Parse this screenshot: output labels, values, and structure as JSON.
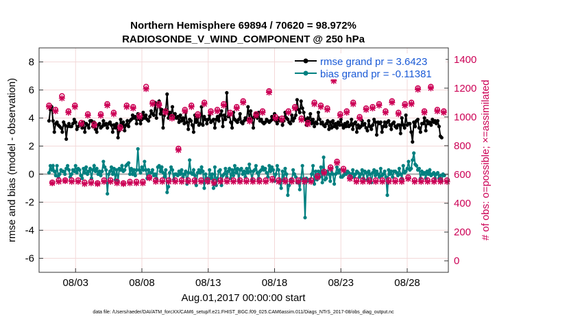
{
  "chart_data": {
    "type": "line",
    "title_line1": "Northern Hemisphere 69894 / 70620 = 98.972%",
    "title_line2": "RADIOSONDE_V_WIND_COMPONENT @ 250 hPa",
    "xlabel": "Aug.01,2017 00:00:00 start",
    "ylabel_left": "rmse and bias (model - observation)",
    "ylabel_right": "# of obs: o=possible; ×=assimilated",
    "footer": "data file: /Users/raeder/DAI/ATM_forcXX/CAM6_setup/f.e21.FHIST_BGC.f09_025.CAM6assim.011/Diags_NTrS_2017-08/obs_diag_output.nc",
    "x_range_days": [
      0.25,
      31.1
    ],
    "x_ticks": [
      {
        "day": 3,
        "label": "08/03"
      },
      {
        "day": 8,
        "label": "08/08"
      },
      {
        "day": 13,
        "label": "08/13"
      },
      {
        "day": 18,
        "label": "08/18"
      },
      {
        "day": 23,
        "label": "08/23"
      },
      {
        "day": 28,
        "label": "08/28"
      }
    ],
    "left_axis": {
      "range": [
        -7,
        9
      ],
      "ticks": [
        -6,
        -4,
        -2,
        0,
        2,
        4,
        6,
        8
      ]
    },
    "right_axis": {
      "range": [
        -80,
        1480
      ],
      "ticks": [
        0,
        200,
        400,
        600,
        800,
        1000,
        1200,
        1400
      ],
      "color": "#cc0055"
    },
    "legend": [
      {
        "label": "rmse grand pr = 3.6423",
        "color": "#000000",
        "marker": "circle"
      },
      {
        "label": "bias grand pr = -0.11381",
        "color": "#008080",
        "marker": "circle"
      }
    ],
    "series": {
      "rmse": {
        "name": "rmse",
        "color": "#000000",
        "values": [
          3.8,
          4.6,
          4.8,
          3.8,
          3.0,
          3.6,
          3.7,
          3.5,
          3.4,
          3.3,
          3.0,
          3.7,
          3.5,
          2.5,
          3.4,
          3.6,
          3.4,
          3.4,
          3.6,
          3.9,
          3.7,
          3.2,
          3.4,
          3.6,
          3.5,
          3.3,
          3.7,
          3.0,
          3.6,
          3.5,
          3.3,
          3.8,
          3.8,
          3.4,
          3.7,
          3.2,
          3.0,
          3.5,
          3.6,
          3.3,
          3.4,
          3.8,
          3.5,
          3.6,
          3.3,
          3.6,
          3.7,
          3.5,
          3.0,
          3.5,
          3.3,
          3.6,
          2.6,
          3.1,
          3.9,
          3.4,
          3.7,
          3.1,
          3.5,
          3.8,
          3.4,
          3.8,
          3.9,
          4.2,
          4.0,
          4.1,
          3.6,
          4.3,
          3.9,
          3.6,
          3.9,
          4.4,
          4.0,
          4.2,
          3.9,
          3.8,
          4.1,
          4.5,
          4.3,
          4.2,
          5.1,
          4.0,
          5.0,
          5.2,
          4.3,
          4.6,
          3.3,
          4.2,
          4.6,
          5.7,
          4.0,
          4.4,
          4.2,
          4.8,
          4.0,
          4.3,
          4.0,
          4.1,
          3.7,
          4.2,
          3.8,
          4.0,
          3.6,
          4.4,
          3.7,
          3.2,
          3.9,
          3.8,
          3.5,
          3.0,
          4.2,
          3.7,
          4.0,
          3.5,
          3.6,
          4.8,
          3.5,
          4.1,
          3.9,
          3.6,
          3.9,
          4.2,
          3.7,
          3.8,
          3.9,
          3.3,
          3.9,
          4.1,
          3.8,
          4.2,
          4.5,
          3.4,
          4.2,
          3.9,
          5.8,
          4.1,
          4.2,
          3.7,
          3.3,
          4.4,
          3.9,
          3.8,
          3.7,
          3.9,
          4.3,
          3.7,
          3.6,
          3.8,
          4.0,
          3.9,
          4.8,
          3.9,
          4.5,
          4.0,
          3.3,
          4.1,
          4.3,
          4.0,
          4.4,
          3.8,
          3.9,
          3.7,
          3.6,
          3.7,
          3.9,
          3.8,
          3.7,
          3.8,
          4.1,
          3.9,
          4.3,
          3.8,
          3.6,
          4.0,
          3.8,
          3.9,
          3.5,
          3.8,
          4.4,
          4.0,
          3.9,
          3.7,
          3.6,
          4.2,
          3.8,
          4.0,
          4.2,
          5.3,
          4.6,
          4.4,
          5.2,
          4.7,
          4.4,
          3.9,
          3.5,
          4.0,
          3.8,
          4.3,
          3.6,
          3.9,
          3.4,
          3.7,
          3.6,
          4.4,
          3.9,
          3.6,
          3.7,
          3.5,
          3.4,
          3.6,
          3.8,
          3.2,
          3.7,
          3.3,
          3.8,
          3.4,
          3.6,
          3.3,
          3.7,
          3.5,
          3.9,
          3.5,
          3.3,
          3.6,
          3.4,
          3.7,
          3.4,
          3.5,
          3.9,
          3.2,
          3.6,
          3.7,
          3.0,
          3.5,
          3.3,
          3.4,
          3.8,
          3.5,
          3.6,
          3.3,
          3.1,
          3.8,
          3.4,
          3.2,
          3.5,
          3.9,
          3.7,
          2.8,
          3.7,
          3.6,
          3.7,
          3.0,
          3.4,
          3.7,
          3.4,
          3.7,
          3.8,
          3.5,
          3.2,
          3.6,
          3.7,
          3.4,
          3.3,
          3.5,
          3.5,
          2.9,
          4.0,
          3.5,
          3.3,
          4.2,
          3.5,
          3.6,
          3.6,
          3.0,
          2.3,
          3.7,
          3.4,
          3.8,
          3.9,
          3.3,
          3.0,
          3.6,
          3.6,
          4.0,
          3.1,
          3.8,
          3.6,
          3.7,
          3.5,
          3.9,
          3.7,
          3.8,
          3.6,
          3.8,
          3.4,
          2.7,
          2.6
        ]
      },
      "bias": {
        "name": "bias",
        "color": "#008080",
        "values": [
          0.1,
          0.6,
          0.3,
          0.6,
          0.2,
          -0.1,
          0.6,
          -0.2,
          0.0,
          0.3,
          0.2,
          0.2,
          0.0,
          0.4,
          0.6,
          0.3,
          -0.2,
          0.0,
          0.3,
          0.2,
          0.6,
          0.1,
          0.4,
          0.3,
          -0.1,
          -0.3,
          0.4,
          0.1,
          0.5,
          0.0,
          0.2,
          0.4,
          -0.3,
          0.3,
          0.6,
          0.2,
          0.4,
          0.0,
          0.2,
          -0.1,
          0.2,
          0.9,
          0.5,
          0.3,
          -1.4,
          0.0,
          0.2,
          0.5,
          0.0,
          0.4,
          -0.4,
          0.3,
          -0.5,
          0.4,
          0.3,
          0.6,
          0.2,
          0.3,
          0.6,
          0.7,
          0.8,
          0.0,
          0.4,
          0.0,
          0.3,
          -0.1,
          0.3,
          1.8,
          0.3,
          0.1,
          0.5,
          0.3,
          0.9,
          0.3,
          -0.3,
          0.3,
          0.1,
          0.1,
          0.3,
          -0.1,
          0.0,
          -0.3,
          0.5,
          0.6,
          0.2,
          0.5,
          0.1,
          -0.2,
          0.3,
          -1.3,
          -0.9,
          0.1,
          0.5,
          0.3,
          -0.4,
          0.0,
          0.0,
          -0.1,
          0.2,
          0.0,
          0.3,
          -0.2,
          0.0,
          0.2,
          -0.7,
          0.1,
          1.0,
          0.1,
          0.0,
          0.3,
          -0.1,
          -0.8,
          0.1,
          0.3,
          0.1,
          0.5,
          0.2,
          -1.0,
          0.0,
          -0.3,
          -0.6,
          0.3,
          -0.3,
          0.0,
          -1.0,
          0.5,
          -0.8,
          -0.3,
          0.2,
          0.3,
          -0.8,
          -0.1,
          0.0,
          0.4,
          -0.2,
          0.2,
          0.4,
          -0.3,
          0.3,
          -0.1,
          0.6,
          0.1,
          0.4,
          -0.5,
          0.3,
          0.4,
          0.0,
          0.2,
          -0.2,
          0.4,
          0.1,
          0.7,
          0.2,
          -0.4,
          0.2,
          0.3,
          0.6,
          0.1,
          -0.3,
          0.2,
          0.3,
          0.5,
          0.3,
          0.4,
          0.1,
          -0.2,
          0.6,
          0.2,
          0.5,
          0.3,
          -0.5,
          0.0,
          0.6,
          0.3,
          -0.6,
          -1.0,
          0.2,
          -0.4,
          0.4,
          0.0,
          -1.5,
          -0.8,
          -0.4,
          -0.5,
          0.3,
          0.0,
          -0.2,
          -0.6,
          -0.5,
          -1.1,
          -0.3,
          0.6,
          -0.4,
          -3.1,
          -0.3,
          -0.5,
          -0.4,
          -0.5,
          0.0,
          0.6,
          -0.7,
          0.2,
          -0.4,
          0.2,
          -0.2,
          0.5,
          -0.6,
          1.2,
          -0.4,
          -0.3,
          0.2,
          0.0,
          -0.5,
          0.4,
          0.0,
          -0.7,
          0.0,
          0.5,
          0.1,
          0.3,
          -0.2,
          -0.2,
          -0.1,
          0.1,
          0.0,
          0.2,
          0.1,
          -0.1,
          0.0,
          0.3,
          -0.2,
          0.0,
          0.2,
          0.1,
          -0.2,
          0.0,
          0.3,
          -0.3,
          0.2,
          0.1,
          -0.4,
          0.2,
          0.0,
          -0.6,
          0.1,
          0.3,
          -0.1,
          0.2,
          0.0,
          -0.2,
          0.4,
          -0.1,
          0.0,
          0.2,
          -0.2,
          -1.5,
          0.3,
          0.0,
          0.2,
          -0.2,
          0.2,
          0.2,
          0.1,
          -0.1,
          0.4,
          0.0,
          -0.3,
          0.6,
          0.1,
          0.2,
          0.4,
          0.9,
          0.3,
          0.4,
          1.0,
          1.5,
          0.7,
          0.6,
          0.3,
          0.4,
          -0.3,
          0.2,
          0.0,
          0.1,
          -0.3,
          0.2,
          0.0,
          0.3,
          -0.1,
          0.0,
          0.1,
          -0.3,
          0.0,
          0.1,
          -0.3,
          -0.1,
          -0.5,
          0.0,
          -0.1
        ]
      },
      "obs_possible": {
        "name": "possible",
        "color": "#cc0055",
        "values": [
          1080,
          545,
          1050,
          560,
          1145,
          560,
          1040,
          560,
          1080,
          560,
          960,
          545,
          1020,
          550,
          950,
          540,
          1020,
          560,
          1090,
          560,
          1030,
          550,
          930,
          540,
          1080,
          550,
          1070,
          550,
          1010,
          550,
          1210,
          580,
          1100,
          560,
          1090,
          560,
          1040,
          560,
          1000,
          560,
          780,
          560,
          1050,
          560,
          1080,
          560,
          1020,
          560,
          1100,
          560,
          1040,
          550,
          1050,
          560,
          1090,
          560,
          1030,
          560,
          1070,
          560,
          1110,
          560,
          980,
          560,
          1020,
          560,
          1040,
          560,
          1180,
          570,
          1000,
          560,
          990,
          560,
          1040,
          560,
          1070,
          560,
          990,
          560,
          960,
          560,
          1100,
          590,
          1080,
          620,
          1060,
          650,
          1260,
          690,
          1020,
          640,
          1040,
          580,
          1100,
          560,
          1000,
          560,
          1060,
          560,
          1070,
          560,
          1090,
          560,
          1040,
          560,
          1110,
          560,
          1030,
          560,
          1090,
          580,
          1100,
          560,
          1200,
          560,
          1040,
          560,
          1210,
          560,
          1050,
          560,
          1040,
          560
        ]
      },
      "obs_assimilated": {
        "name": "assimilated",
        "color": "#cc0055",
        "values": [
          1070,
          540,
          1040,
          550,
          1130,
          555,
          1030,
          550,
          1070,
          550,
          950,
          535,
          1010,
          540,
          940,
          535,
          1010,
          550,
          1080,
          550,
          1020,
          540,
          920,
          535,
          1070,
          540,
          1060,
          540,
          1000,
          540,
          1195,
          575,
          1090,
          550,
          1080,
          550,
          1030,
          550,
          990,
          550,
          770,
          550,
          1040,
          550,
          1070,
          550,
          1010,
          550,
          1090,
          550,
          1030,
          540,
          1040,
          550,
          1080,
          550,
          1020,
          550,
          1060,
          550,
          1100,
          550,
          970,
          550,
          1010,
          550,
          1030,
          550,
          1170,
          560,
          990,
          550,
          980,
          550,
          1030,
          550,
          1060,
          550,
          980,
          550,
          950,
          550,
          1090,
          580,
          1070,
          610,
          1050,
          640,
          1250,
          680,
          1010,
          630,
          1030,
          570,
          1090,
          550,
          990,
          550,
          1050,
          550,
          1060,
          550,
          1080,
          550,
          1030,
          550,
          1100,
          550,
          1020,
          550,
          1080,
          570,
          1090,
          550,
          1190,
          550,
          1030,
          550,
          1200,
          550,
          1040,
          550,
          1030,
          550
        ]
      }
    }
  }
}
